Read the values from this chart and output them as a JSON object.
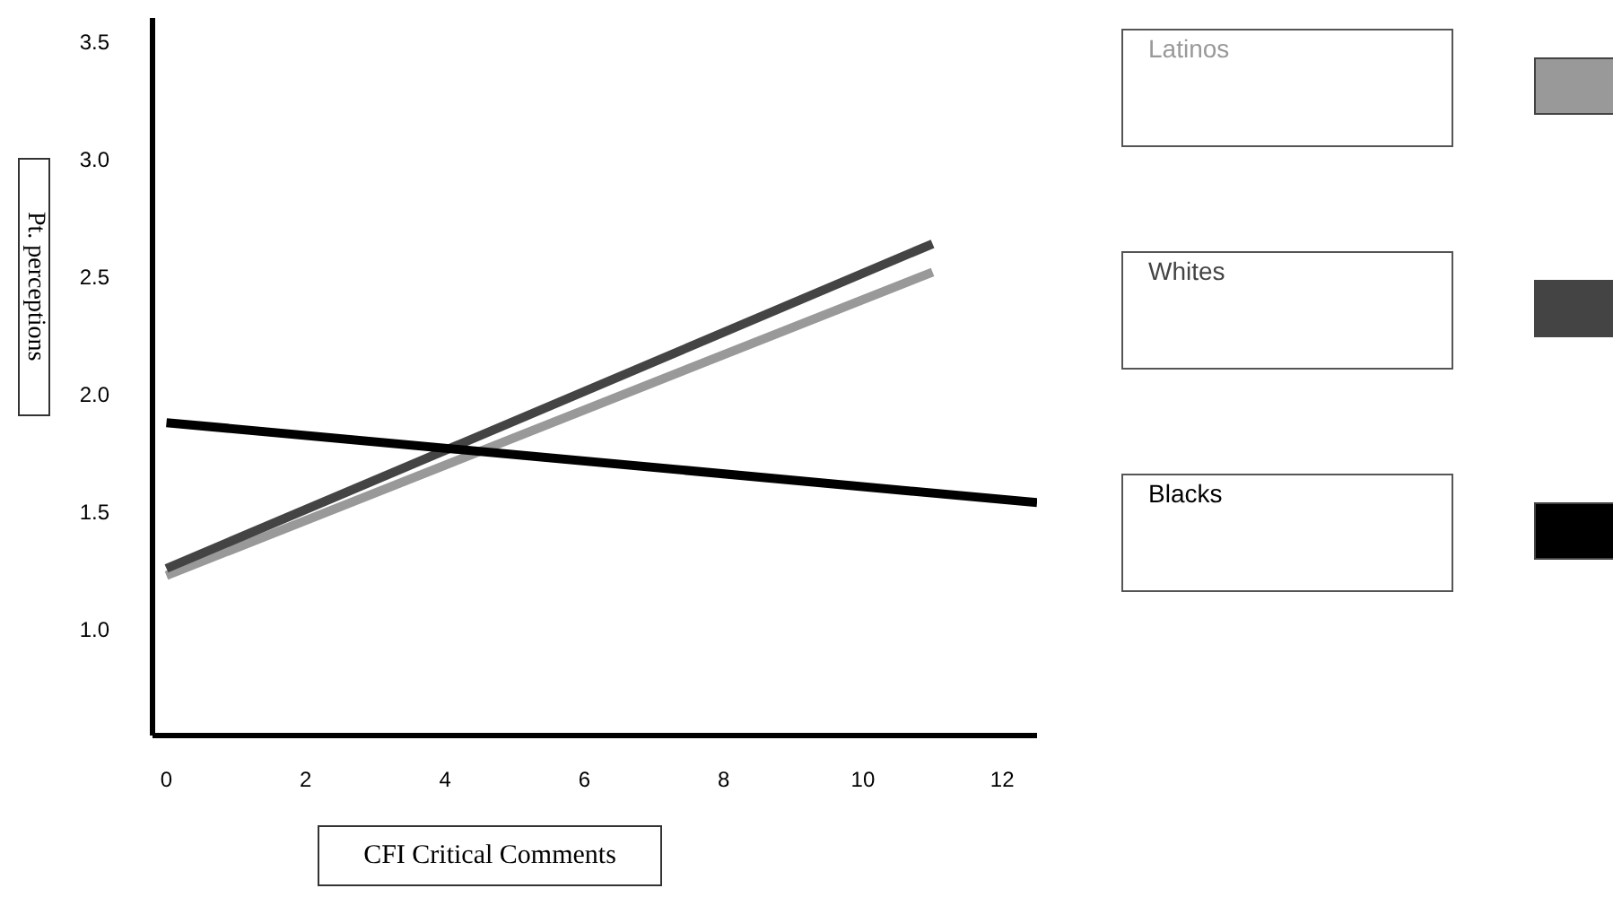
{
  "chart_data": {
    "type": "line",
    "xlabel": "CFI Critical Comments",
    "ylabel": "Pt. perceptions",
    "xlim": [
      -0.2,
      12.5
    ],
    "xticks": [
      0,
      2,
      4,
      6,
      8,
      10,
      12
    ],
    "ylim": [
      0.55,
      3.6
    ],
    "yticks": [
      {
        "value": 1,
        "label": "1.0"
      },
      1.5,
      {
        "value": 2,
        "label": "2.0"
      },
      2.5,
      {
        "value": 3,
        "label": "3.0"
      },
      3.5
    ],
    "grid": false,
    "legend": "right",
    "marker": "none",
    "line_style": "solid",
    "series": [
      {
        "name": "Latinos",
        "color": "#999999",
        "x": [
          0,
          11
        ],
        "values": [
          1.23,
          2.52
        ]
      },
      {
        "name": "Whites",
        "color": "#444444",
        "x": [
          0,
          11
        ],
        "values": [
          1.26,
          2.64
        ]
      },
      {
        "name": "Blacks",
        "color": "#000000",
        "x": [
          0,
          12.5
        ],
        "values": [
          1.88,
          1.54
        ]
      }
    ]
  }
}
